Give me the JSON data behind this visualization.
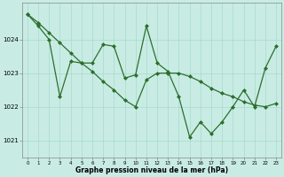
{
  "line1_x": [
    0,
    1,
    2,
    3,
    4,
    5,
    6,
    7,
    8,
    9,
    10,
    11,
    12,
    13,
    14,
    15,
    16,
    17,
    18,
    19,
    20,
    21,
    22,
    23
  ],
  "line1_y": [
    1024.75,
    1024.4,
    1024.0,
    1022.3,
    1023.35,
    1023.3,
    1023.3,
    1023.85,
    1023.8,
    1022.85,
    1022.95,
    1024.4,
    1023.3,
    1023.05,
    1022.3,
    1021.1,
    1021.55,
    1021.2,
    1021.55,
    1022.0,
    1022.5,
    1022.0,
    1023.15,
    1023.8
  ],
  "line2_x": [
    0,
    1,
    2,
    3,
    4,
    5,
    6,
    7,
    8,
    9,
    10,
    11,
    12,
    13,
    14,
    15,
    16,
    17,
    18,
    19,
    20,
    21,
    22,
    23
  ],
  "line2_y": [
    1024.75,
    1024.5,
    1024.2,
    1023.9,
    1023.6,
    1023.3,
    1023.05,
    1022.75,
    1022.5,
    1022.2,
    1022.0,
    1022.8,
    1023.0,
    1023.0,
    1023.0,
    1022.9,
    1022.75,
    1022.55,
    1022.4,
    1022.3,
    1022.15,
    1022.05,
    1022.0,
    1022.1
  ],
  "line_color": "#2d6e2d",
  "bg_color": "#c8ece4",
  "grid_color": "#a8d8cc",
  "xlabel": "Graphe pression niveau de la mer (hPa)",
  "ylim": [
    1020.5,
    1025.1
  ],
  "xlim": [
    -0.5,
    23.5
  ],
  "yticks": [
    1021,
    1022,
    1023,
    1024
  ],
  "xticks": [
    0,
    1,
    2,
    3,
    4,
    5,
    6,
    7,
    8,
    9,
    10,
    11,
    12,
    13,
    14,
    15,
    16,
    17,
    18,
    19,
    20,
    21,
    22,
    23
  ]
}
